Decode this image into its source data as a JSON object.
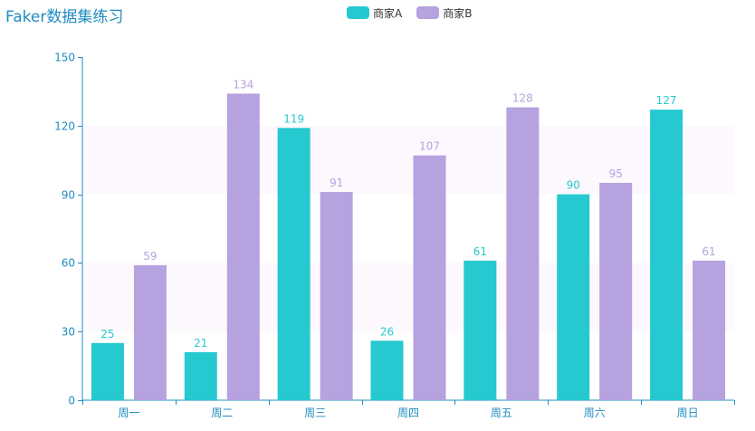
{
  "chart_data": {
    "type": "bar",
    "title": "Faker数据集练习",
    "categories": [
      "周一",
      "周二",
      "周三",
      "周四",
      "周五",
      "周六",
      "周日"
    ],
    "series": [
      {
        "name": "商家A",
        "values": [
          25,
          21,
          119,
          26,
          61,
          90,
          127
        ],
        "color": "#26c9cf"
      },
      {
        "name": "商家B",
        "values": [
          59,
          134,
          91,
          107,
          128,
          95,
          61
        ],
        "color": "#b5a2de"
      }
    ],
    "ylim": [
      0,
      150
    ],
    "yticks": [
      0,
      30,
      60,
      90,
      120,
      150
    ],
    "grid": "horizontal split bands",
    "legend_position": "top-center",
    "data_labels": true
  },
  "colors": {
    "title": "#1f8cc0",
    "axis": "#1f8cc0",
    "band": "#fcf8fd"
  }
}
